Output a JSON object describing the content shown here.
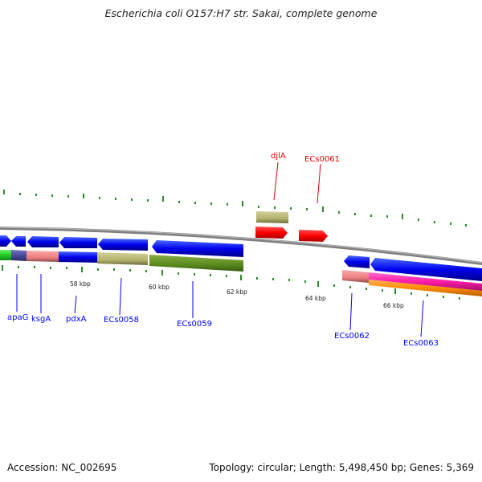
{
  "title": "Escherichia coli O157:H7 str. Sakai, complete genome",
  "footer": {
    "accession": "Accession: NC_002695",
    "stats": "Topology: circular; Length: 5,498,450 bp; Genes: 5,369"
  },
  "colors": {
    "backbone": "#7f7f7f",
    "cds_forward": "#0000ff",
    "cds_reverse": "#ff0000",
    "tick": "#2a8a2a",
    "label_forward": "#0000ff",
    "label_reverse": "#e00000",
    "khaki": "#b3b26e",
    "olive": "#5a8a1e",
    "salmon": "#f08080",
    "magenta": "#ff1aa8",
    "orange": "#ff8c00",
    "green": "#22cc22",
    "slate": "#4a4a9a"
  },
  "diagram": {
    "kbp_labels": [
      "58 kbp",
      "60 kbp",
      "62 kbp",
      "64 kbp",
      "66 kbp"
    ],
    "forward_labels": [
      "apaG",
      "ksgA",
      "pdxA",
      "ECs0058",
      "ECs0059",
      "ECs0062",
      "ECs0063"
    ],
    "reverse_labels": [
      "djlA",
      "ECs0061"
    ]
  }
}
